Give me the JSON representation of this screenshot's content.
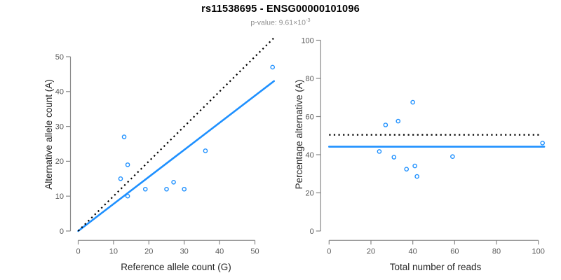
{
  "figure": {
    "title": "rs11538695 - ENSG00000101096",
    "subtitle_prefix": "p-value: 9.61×10",
    "subtitle_exponent": "-3"
  },
  "colors": {
    "accent_blue": "#1E90FF",
    "dotted_black": "#000000",
    "axis_gray": "#888888",
    "tick_label_gray": "#595959",
    "axis_title_color": "#262626",
    "subtitle_gray": "#8c8c8c"
  },
  "chart_data": [
    {
      "type": "scatter",
      "title": "",
      "xlabel": "Reference allele count (G)",
      "ylabel": "Alternative allele count (A)",
      "xlim": [
        0,
        55.6
      ],
      "ylim": [
        0,
        55.6
      ],
      "xticks": [
        0,
        10,
        20,
        30,
        40,
        50
      ],
      "yticks": [
        0,
        10,
        20,
        30,
        40,
        50
      ],
      "grid": false,
      "legend": "none",
      "points": [
        [
          13,
          27
        ],
        [
          14,
          19
        ],
        [
          12,
          15
        ],
        [
          14,
          10
        ],
        [
          19,
          12
        ],
        [
          25,
          12
        ],
        [
          27,
          14
        ],
        [
          30,
          12
        ],
        [
          36,
          23
        ],
        [
          55,
          47
        ]
      ],
      "lines": [
        {
          "name": "regression-line",
          "style": "solid",
          "color": "#1E90FF",
          "x": [
            0,
            55.4
          ],
          "y": [
            0,
            43.0
          ]
        },
        {
          "name": "identity-line",
          "style": "dotted",
          "color": "#000000",
          "x": [
            0,
            55.6
          ],
          "y": [
            0,
            55.6
          ]
        }
      ]
    },
    {
      "type": "scatter",
      "title": "",
      "xlabel": "Total number of reads",
      "ylabel": "Percentage alternative (A)",
      "xlim": [
        0,
        102.8
      ],
      "ylim": [
        0,
        100
      ],
      "xticks": [
        0,
        20,
        40,
        60,
        80,
        100
      ],
      "yticks": [
        0,
        20,
        40,
        60,
        80,
        100
      ],
      "grid": false,
      "legend": "none",
      "points": [
        [
          40,
          67.5
        ],
        [
          33,
          57.6
        ],
        [
          27,
          55.6
        ],
        [
          24,
          41.7
        ],
        [
          31,
          38.7
        ],
        [
          37,
          32.4
        ],
        [
          41,
          34.1
        ],
        [
          42,
          28.6
        ],
        [
          59,
          39.0
        ],
        [
          102,
          46.1
        ]
      ],
      "lines": [
        {
          "name": "mean-percentage-line",
          "style": "solid",
          "color": "#1E90FF",
          "x": [
            0,
            102.8
          ],
          "y": [
            44.2,
            44.2
          ]
        },
        {
          "name": "fifty-percent-line",
          "style": "dotted",
          "color": "#000000",
          "x": [
            0,
            100.6
          ],
          "y": [
            50.4,
            50.4
          ]
        }
      ]
    }
  ]
}
